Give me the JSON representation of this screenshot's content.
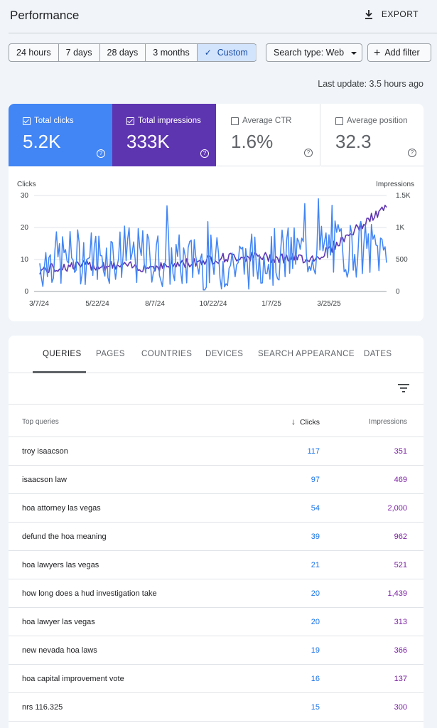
{
  "header": {
    "title": "Performance",
    "export_label": "EXPORT"
  },
  "date_filters": [
    {
      "label": "24 hours",
      "active": false
    },
    {
      "label": "7 days",
      "active": false
    },
    {
      "label": "28 days",
      "active": false
    },
    {
      "label": "3 months",
      "active": false
    },
    {
      "label": "Custom",
      "active": true
    }
  ],
  "search_type": {
    "label": "Search type: Web"
  },
  "add_filter": {
    "label": "Add filter"
  },
  "last_update": "Last update: 3.5 hours ago",
  "metrics": [
    {
      "label": "Total clicks",
      "value": "5.2K",
      "checked": true,
      "color": "#4285f4"
    },
    {
      "label": "Total impressions",
      "value": "333K",
      "checked": true,
      "color": "#5e35b1"
    },
    {
      "label": "Average CTR",
      "value": "1.6%",
      "checked": false
    },
    {
      "label": "Average position",
      "value": "32.3",
      "checked": false
    }
  ],
  "chart": {
    "left_label": "Clicks",
    "right_label": "Impressions",
    "left_ticks": [
      "30",
      "20",
      "10",
      "0"
    ],
    "right_ticks": [
      "1.5K",
      "1K",
      "500",
      "0"
    ],
    "x_ticks": [
      "3/7/24",
      "5/22/24",
      "8/7/24",
      "10/22/24",
      "1/7/25",
      "3/25/25"
    ],
    "clicks_color": "#4285f4",
    "impressions_color": "#5e35b1"
  },
  "tabs": [
    {
      "label": "QUERIES",
      "active": true
    },
    {
      "label": "PAGES",
      "active": false
    },
    {
      "label": "COUNTRIES",
      "active": false
    },
    {
      "label": "DEVICES",
      "active": false
    },
    {
      "label": "SEARCH APPEARANCE",
      "active": false
    },
    {
      "label": "DATES",
      "active": false
    }
  ],
  "table": {
    "col_query": "Top queries",
    "col_clicks": "Clicks",
    "col_impressions": "Impressions",
    "rows": [
      {
        "query": "troy isaacson",
        "clicks": "117",
        "impressions": "351"
      },
      {
        "query": "isaacson law",
        "clicks": "97",
        "impressions": "469"
      },
      {
        "query": "hoa attorney las vegas",
        "clicks": "54",
        "impressions": "2,000"
      },
      {
        "query": "defund the hoa meaning",
        "clicks": "39",
        "impressions": "962"
      },
      {
        "query": "hoa lawyers las vegas",
        "clicks": "21",
        "impressions": "521"
      },
      {
        "query": "how long does a hud investigation take",
        "clicks": "20",
        "impressions": "1,439"
      },
      {
        "query": "hoa lawyer las vegas",
        "clicks": "20",
        "impressions": "313"
      },
      {
        "query": "new nevada hoa laws",
        "clicks": "19",
        "impressions": "366"
      },
      {
        "query": "hoa capital improvement vote",
        "clicks": "16",
        "impressions": "137"
      },
      {
        "query": "nrs 116.325",
        "clicks": "15",
        "impressions": "300"
      }
    ]
  }
}
